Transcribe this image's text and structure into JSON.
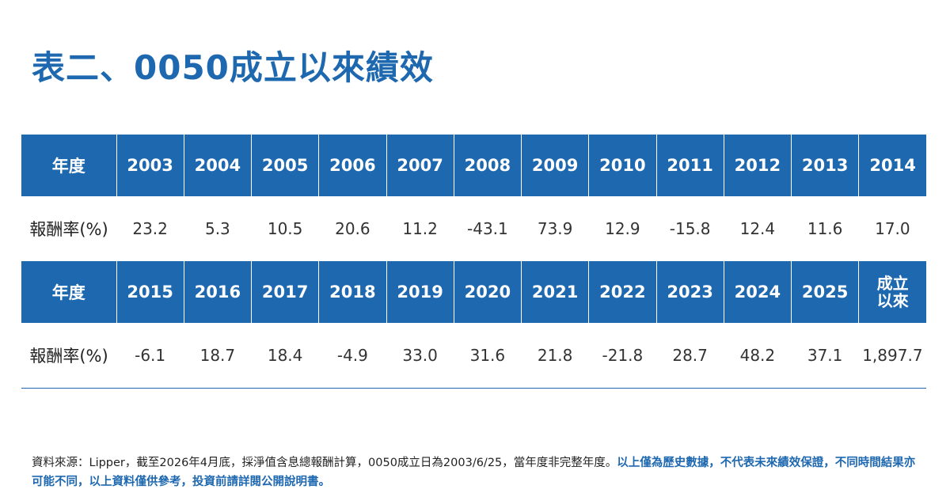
{
  "title": "表二、0050成立以來績效",
  "table": {
    "row_label_year": "年度",
    "row_label_return": "報酬率(%)",
    "block1": {
      "years": [
        "2003",
        "2004",
        "2005",
        "2006",
        "2007",
        "2008",
        "2009",
        "2010",
        "2011",
        "2012",
        "2013",
        "2014"
      ],
      "returns": [
        "23.2",
        "5.3",
        "10.5",
        "20.6",
        "11.2",
        "-43.1",
        "73.9",
        "12.9",
        "-15.8",
        "12.4",
        "11.6",
        "17.0"
      ]
    },
    "block2": {
      "years": [
        "2015",
        "2016",
        "2017",
        "2018",
        "2019",
        "2020",
        "2021",
        "2022",
        "2023",
        "2024",
        "2025"
      ],
      "since_inception_line1": "成立",
      "since_inception_line2": "以來",
      "returns": [
        "-6.1",
        "18.7",
        "18.4",
        "-4.9",
        "33.0",
        "31.6",
        "21.8",
        "-21.8",
        "28.7",
        "48.2",
        "37.1",
        "1,897.7"
      ]
    }
  },
  "footnote": {
    "source": "資料來源：Lipper，截至2026年4月底，採淨值含息總報酬計算，0050成立日為2003/6/25，當年度非完整年度。",
    "disclaimer": "以上僅為歷史數據，不代表未來績效保證，不同時間結果亦可能不同，以上資料僅供參考，投資前請詳閱公開說明書。"
  },
  "colors": {
    "accent": "#1e68b0",
    "text": "#333333",
    "background": "#ffffff"
  }
}
